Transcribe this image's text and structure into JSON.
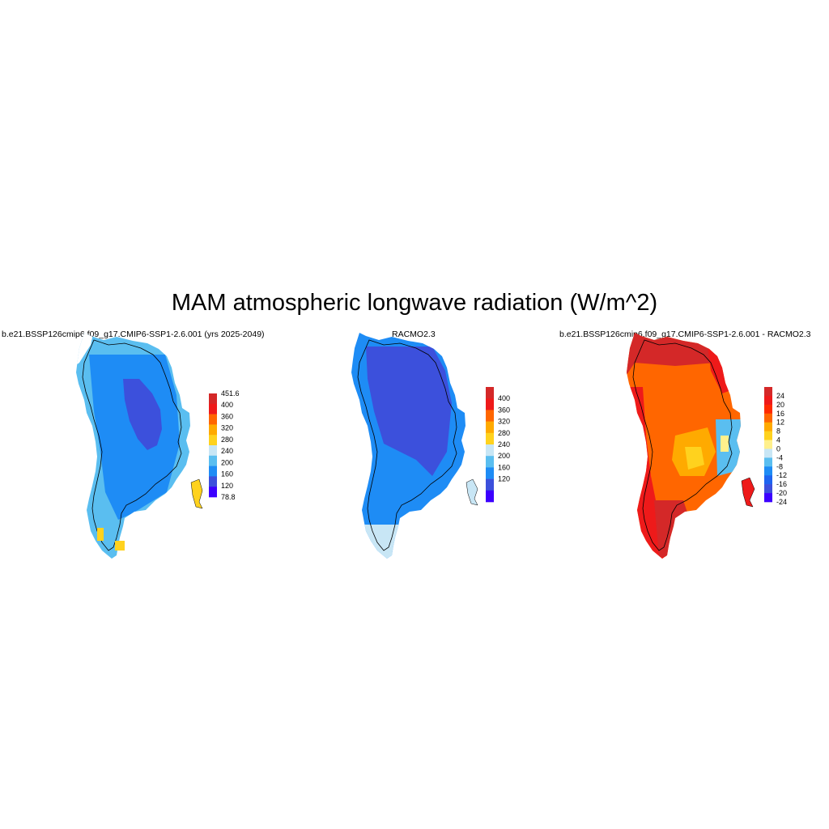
{
  "title": "MAM atmospheric longwave radiation (W/m^2)",
  "panels": [
    {
      "title": "b.e21.BSSP126cmip6.f09_g17.CMIP6-SSP1-2.6.001 (yrs 2025-2049)",
      "colorbar": {
        "labels": [
          "451.6",
          "400",
          "360",
          "320",
          "280",
          "240",
          "200",
          "160",
          "120",
          "78.8"
        ],
        "colors": [
          "#d42828",
          "#ee1a1a",
          "#ff6600",
          "#ffaa00",
          "#ffd21e",
          "#c8e6f5",
          "#5abef0",
          "#1e8cf5",
          "#3c50dc",
          "#3c00ff"
        ]
      }
    },
    {
      "title": "RACMO2.3",
      "colorbar": {
        "labels": [
          "400",
          "360",
          "320",
          "280",
          "240",
          "200",
          "160",
          "120"
        ],
        "colors": [
          "#d42828",
          "#ee1a1a",
          "#ff6600",
          "#ffaa00",
          "#ffd21e",
          "#c8e6f5",
          "#5abef0",
          "#1e8cf5",
          "#3c50dc",
          "#3c00ff"
        ]
      }
    },
    {
      "title": "b.e21.BSSP126cmip6.f09_g17.CMIP6-SSP1-2.6.001 - RACMO2.3",
      "colorbar": {
        "labels": [
          "24",
          "20",
          "16",
          "12",
          "8",
          "4",
          "0",
          "-4",
          "-8",
          "-12",
          "-16",
          "-20",
          "-24"
        ],
        "colors": [
          "#d42828",
          "#ee1a1a",
          "#ff2a00",
          "#ff6600",
          "#ffaa00",
          "#ffd21e",
          "#fff08c",
          "#c8e6f5",
          "#5abef0",
          "#1e8cf5",
          "#1e64f0",
          "#3c50dc",
          "#3c00ff"
        ]
      }
    }
  ]
}
